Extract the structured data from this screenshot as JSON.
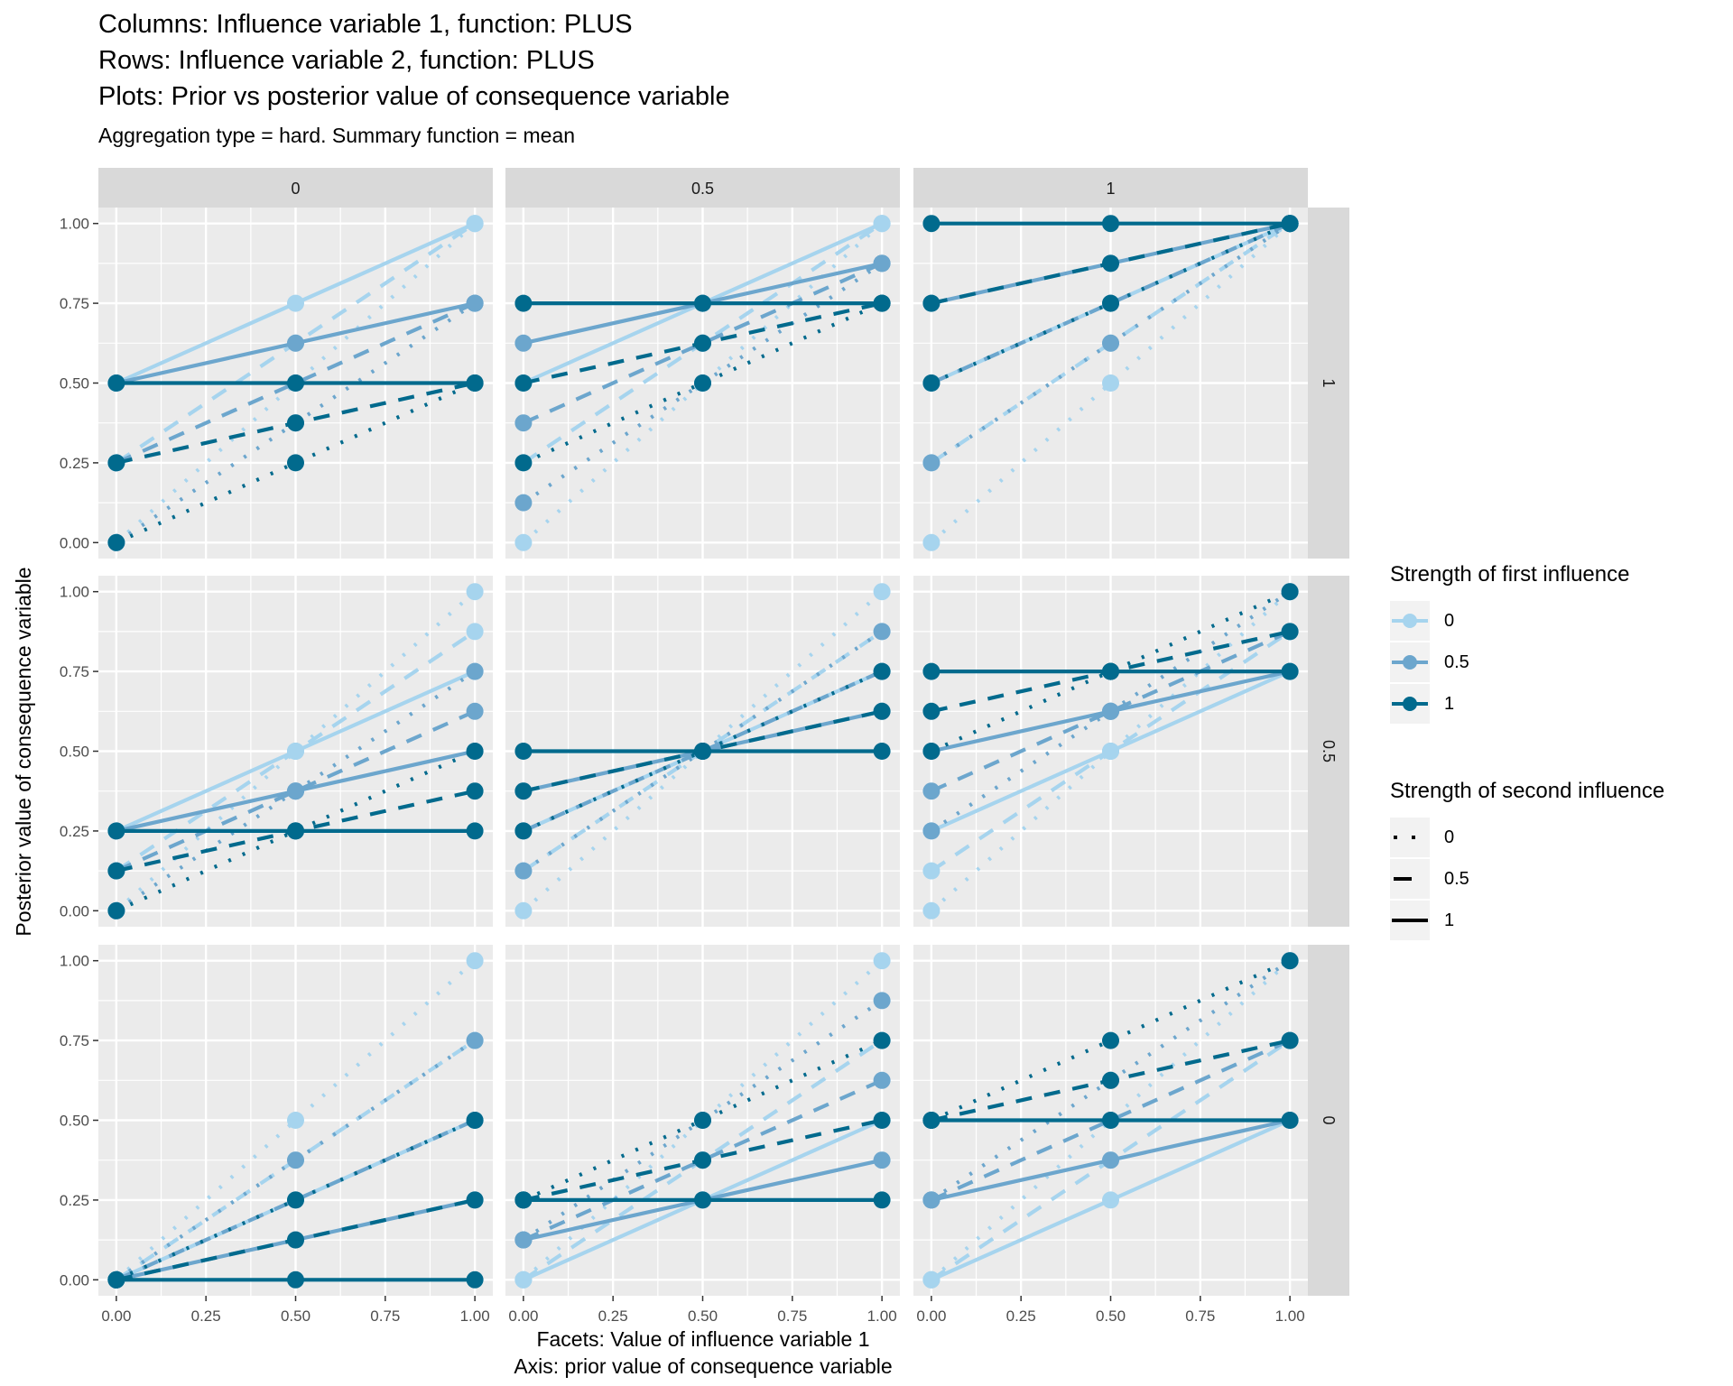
{
  "titles": {
    "line1": "Columns: Influence variable 1, function: PLUS",
    "line2": "Rows: Influence variable 2, function: PLUS",
    "line3": "Plots: Prior vs posterior value of consequence variable",
    "subtitle": "Aggregation type = hard. Summary function = mean"
  },
  "legend": {
    "color_title": "Strength of first influence",
    "color_items": [
      {
        "label": "0",
        "color": "#a6d4ee"
      },
      {
        "label": "0.5",
        "color": "#6ca6cd"
      },
      {
        "label": "1",
        "color": "#016a8d"
      }
    ],
    "linetype_title": "Strength of second influence",
    "linetype_items": [
      {
        "label": "0",
        "linetype": "dotted"
      },
      {
        "label": "0.5",
        "linetype": "dashed"
      },
      {
        "label": "1",
        "linetype": "solid"
      }
    ]
  },
  "chart_data": {
    "type": "line",
    "xlabel": "Facets: Value of influence variable 1\nAxis: prior value of consequence variable",
    "xlabel_lines": [
      "Facets: Value of influence variable 1",
      "Axis: prior value of consequence variable"
    ],
    "ylabel": "Posterior value of consequence variable",
    "xlim": [
      -0.05,
      1.05
    ],
    "ylim": [
      -0.05,
      1.05
    ],
    "x_ticks": [
      "0.00",
      "0.25",
      "0.50",
      "0.75",
      "1.00"
    ],
    "y_ticks": [
      "0.00",
      "0.25",
      "0.50",
      "0.75",
      "1.00"
    ],
    "grid": true,
    "legend_position": "right",
    "facet_columns": [
      "0",
      "0.5",
      "1"
    ],
    "facet_rows": [
      "1",
      "0.5",
      "0"
    ],
    "x": [
      0,
      0.5,
      1
    ],
    "panels": [
      {
        "col": "0",
        "row": "1",
        "series": [
          {
            "s1": "0",
            "s2": "0",
            "values": [
              0,
              0.5,
              1
            ]
          },
          {
            "s1": "0",
            "s2": "0.5",
            "values": [
              0.25,
              0.625,
              1
            ]
          },
          {
            "s1": "0",
            "s2": "1",
            "values": [
              0.5,
              0.75,
              1
            ]
          },
          {
            "s1": "0.5",
            "s2": "0",
            "values": [
              0,
              0.375,
              0.75
            ]
          },
          {
            "s1": "0.5",
            "s2": "0.5",
            "values": [
              0.25,
              0.5,
              0.75
            ]
          },
          {
            "s1": "0.5",
            "s2": "1",
            "values": [
              0.5,
              0.625,
              0.75
            ]
          },
          {
            "s1": "1",
            "s2": "0",
            "values": [
              0,
              0.25,
              0.5
            ]
          },
          {
            "s1": "1",
            "s2": "0.5",
            "values": [
              0.25,
              0.375,
              0.5
            ]
          },
          {
            "s1": "1",
            "s2": "1",
            "values": [
              0.5,
              0.5,
              0.5
            ]
          }
        ]
      },
      {
        "col": "0.5",
        "row": "1",
        "series": [
          {
            "s1": "0",
            "s2": "0",
            "values": [
              0,
              0.5,
              1
            ]
          },
          {
            "s1": "0",
            "s2": "0.5",
            "values": [
              0.25,
              0.625,
              1
            ]
          },
          {
            "s1": "0",
            "s2": "1",
            "values": [
              0.5,
              0.75,
              1
            ]
          },
          {
            "s1": "0.5",
            "s2": "0",
            "values": [
              0.125,
              0.5,
              0.875
            ]
          },
          {
            "s1": "0.5",
            "s2": "0.5",
            "values": [
              0.375,
              0.625,
              0.875
            ]
          },
          {
            "s1": "0.5",
            "s2": "1",
            "values": [
              0.625,
              0.75,
              0.875
            ]
          },
          {
            "s1": "1",
            "s2": "0",
            "values": [
              0.25,
              0.5,
              0.75
            ]
          },
          {
            "s1": "1",
            "s2": "0.5",
            "values": [
              0.5,
              0.625,
              0.75
            ]
          },
          {
            "s1": "1",
            "s2": "1",
            "values": [
              0.75,
              0.75,
              0.75
            ]
          }
        ]
      },
      {
        "col": "1",
        "row": "1",
        "series": [
          {
            "s1": "0",
            "s2": "0",
            "values": [
              0,
              0.5,
              1
            ]
          },
          {
            "s1": "0",
            "s2": "0.5",
            "values": [
              0.25,
              0.625,
              1
            ]
          },
          {
            "s1": "0",
            "s2": "1",
            "values": [
              0.5,
              0.75,
              1
            ]
          },
          {
            "s1": "0.5",
            "s2": "0",
            "values": [
              0.25,
              0.625,
              1
            ]
          },
          {
            "s1": "0.5",
            "s2": "0.5",
            "values": [
              0.5,
              0.75,
              1
            ]
          },
          {
            "s1": "0.5",
            "s2": "1",
            "values": [
              0.75,
              0.875,
              1
            ]
          },
          {
            "s1": "1",
            "s2": "0",
            "values": [
              0.5,
              0.75,
              1
            ]
          },
          {
            "s1": "1",
            "s2": "0.5",
            "values": [
              0.75,
              0.875,
              1
            ]
          },
          {
            "s1": "1",
            "s2": "1",
            "values": [
              1,
              1,
              1
            ]
          }
        ]
      },
      {
        "col": "0",
        "row": "0.5",
        "series": [
          {
            "s1": "0",
            "s2": "0",
            "values": [
              0,
              0.5,
              1
            ]
          },
          {
            "s1": "0",
            "s2": "0.5",
            "values": [
              0.125,
              0.5,
              0.875
            ]
          },
          {
            "s1": "0",
            "s2": "1",
            "values": [
              0.25,
              0.5,
              0.75
            ]
          },
          {
            "s1": "0.5",
            "s2": "0",
            "values": [
              0,
              0.375,
              0.75
            ]
          },
          {
            "s1": "0.5",
            "s2": "0.5",
            "values": [
              0.125,
              0.375,
              0.625
            ]
          },
          {
            "s1": "0.5",
            "s2": "1",
            "values": [
              0.25,
              0.375,
              0.5
            ]
          },
          {
            "s1": "1",
            "s2": "0",
            "values": [
              0,
              0.25,
              0.5
            ]
          },
          {
            "s1": "1",
            "s2": "0.5",
            "values": [
              0.125,
              0.25,
              0.375
            ]
          },
          {
            "s1": "1",
            "s2": "1",
            "values": [
              0.25,
              0.25,
              0.25
            ]
          }
        ]
      },
      {
        "col": "0.5",
        "row": "0.5",
        "series": [
          {
            "s1": "0",
            "s2": "0",
            "values": [
              0,
              0.5,
              1
            ]
          },
          {
            "s1": "0",
            "s2": "0.5",
            "values": [
              0.125,
              0.5,
              0.875
            ]
          },
          {
            "s1": "0",
            "s2": "1",
            "values": [
              0.25,
              0.5,
              0.75
            ]
          },
          {
            "s1": "0.5",
            "s2": "0",
            "values": [
              0.125,
              0.5,
              0.875
            ]
          },
          {
            "s1": "0.5",
            "s2": "0.5",
            "values": [
              0.25,
              0.5,
              0.75
            ]
          },
          {
            "s1": "0.5",
            "s2": "1",
            "values": [
              0.375,
              0.5,
              0.625
            ]
          },
          {
            "s1": "1",
            "s2": "0",
            "values": [
              0.25,
              0.5,
              0.75
            ]
          },
          {
            "s1": "1",
            "s2": "0.5",
            "values": [
              0.375,
              0.5,
              0.625
            ]
          },
          {
            "s1": "1",
            "s2": "1",
            "values": [
              0.5,
              0.5,
              0.5
            ]
          }
        ]
      },
      {
        "col": "1",
        "row": "0.5",
        "series": [
          {
            "s1": "0",
            "s2": "0",
            "values": [
              0,
              0.5,
              1
            ]
          },
          {
            "s1": "0",
            "s2": "0.5",
            "values": [
              0.125,
              0.5,
              0.875
            ]
          },
          {
            "s1": "0",
            "s2": "1",
            "values": [
              0.25,
              0.5,
              0.75
            ]
          },
          {
            "s1": "0.5",
            "s2": "0",
            "values": [
              0.25,
              0.625,
              1
            ]
          },
          {
            "s1": "0.5",
            "s2": "0.5",
            "values": [
              0.375,
              0.625,
              0.875
            ]
          },
          {
            "s1": "0.5",
            "s2": "1",
            "values": [
              0.5,
              0.625,
              0.75
            ]
          },
          {
            "s1": "1",
            "s2": "0",
            "values": [
              0.5,
              0.75,
              1
            ]
          },
          {
            "s1": "1",
            "s2": "0.5",
            "values": [
              0.625,
              0.75,
              0.875
            ]
          },
          {
            "s1": "1",
            "s2": "1",
            "values": [
              0.75,
              0.75,
              0.75
            ]
          }
        ]
      },
      {
        "col": "0",
        "row": "0",
        "series": [
          {
            "s1": "0",
            "s2": "0",
            "values": [
              0,
              0.5,
              1
            ]
          },
          {
            "s1": "0",
            "s2": "0.5",
            "values": [
              0,
              0.375,
              0.75
            ]
          },
          {
            "s1": "0",
            "s2": "1",
            "values": [
              0,
              0.25,
              0.5
            ]
          },
          {
            "s1": "0.5",
            "s2": "0",
            "values": [
              0,
              0.375,
              0.75
            ]
          },
          {
            "s1": "0.5",
            "s2": "0.5",
            "values": [
              0,
              0.25,
              0.5
            ]
          },
          {
            "s1": "0.5",
            "s2": "1",
            "values": [
              0,
              0.125,
              0.25
            ]
          },
          {
            "s1": "1",
            "s2": "0",
            "values": [
              0,
              0.25,
              0.5
            ]
          },
          {
            "s1": "1",
            "s2": "0.5",
            "values": [
              0,
              0.125,
              0.25
            ]
          },
          {
            "s1": "1",
            "s2": "1",
            "values": [
              0,
              0,
              0
            ]
          }
        ]
      },
      {
        "col": "0.5",
        "row": "0",
        "series": [
          {
            "s1": "0",
            "s2": "0",
            "values": [
              0,
              0.5,
              1
            ]
          },
          {
            "s1": "0",
            "s2": "0.5",
            "values": [
              0,
              0.375,
              0.75
            ]
          },
          {
            "s1": "0",
            "s2": "1",
            "values": [
              0,
              0.25,
              0.5
            ]
          },
          {
            "s1": "0.5",
            "s2": "0",
            "values": [
              0.125,
              0.5,
              0.875
            ]
          },
          {
            "s1": "0.5",
            "s2": "0.5",
            "values": [
              0.125,
              0.375,
              0.625
            ]
          },
          {
            "s1": "0.5",
            "s2": "1",
            "values": [
              0.125,
              0.25,
              0.375
            ]
          },
          {
            "s1": "1",
            "s2": "0",
            "values": [
              0.25,
              0.5,
              0.75
            ]
          },
          {
            "s1": "1",
            "s2": "0.5",
            "values": [
              0.25,
              0.375,
              0.5
            ]
          },
          {
            "s1": "1",
            "s2": "1",
            "values": [
              0.25,
              0.25,
              0.25
            ]
          }
        ]
      },
      {
        "col": "1",
        "row": "0",
        "series": [
          {
            "s1": "0",
            "s2": "0",
            "values": [
              0,
              0.5,
              1
            ]
          },
          {
            "s1": "0",
            "s2": "0.5",
            "values": [
              0,
              0.375,
              0.75
            ]
          },
          {
            "s1": "0",
            "s2": "1",
            "values": [
              0,
              0.25,
              0.5
            ]
          },
          {
            "s1": "0.5",
            "s2": "0",
            "values": [
              0.25,
              0.625,
              1
            ]
          },
          {
            "s1": "0.5",
            "s2": "0.5",
            "values": [
              0.25,
              0.5,
              0.75
            ]
          },
          {
            "s1": "0.5",
            "s2": "1",
            "values": [
              0.25,
              0.375,
              0.5
            ]
          },
          {
            "s1": "1",
            "s2": "0",
            "values": [
              0.5,
              0.75,
              1
            ]
          },
          {
            "s1": "1",
            "s2": "0.5",
            "values": [
              0.5,
              0.625,
              0.75
            ]
          },
          {
            "s1": "1",
            "s2": "1",
            "values": [
              0.5,
              0.5,
              0.5
            ]
          }
        ]
      }
    ]
  }
}
